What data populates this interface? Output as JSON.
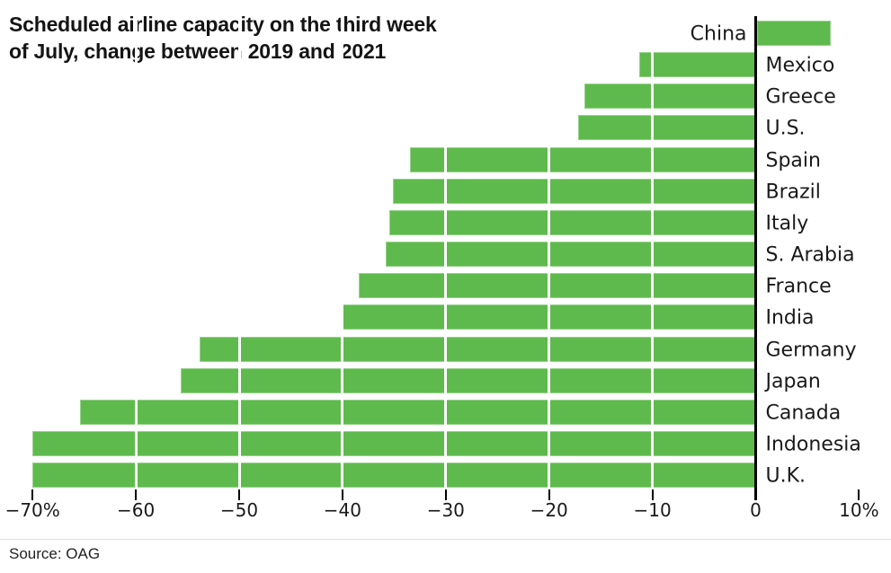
{
  "header": {
    "title_lines": [
      "Scheduled airline capacity on the third week",
      "of July, change between 2019 and 2021"
    ]
  },
  "source": {
    "label": "Source: OAG"
  },
  "colors": {
    "bar_green": "#5fba4d",
    "axis_black": "#000000",
    "text_dark": "#1a1a1a",
    "divider_gray": "#e0e0e0"
  },
  "chart_data": {
    "type": "bar",
    "orientation": "horizontal",
    "title": "Scheduled airline capacity on the third week of July, change between 2019 and 2021",
    "unit": "%",
    "categories": [
      "China",
      "Mexico",
      "Greece",
      "U.S.",
      "Spain",
      "Brazil",
      "Italy",
      "S. Arabia",
      "France",
      "India",
      "Germany",
      "Japan",
      "Canada",
      "Indonesia",
      "U.K."
    ],
    "values": [
      7.1,
      -11.3,
      -16.6,
      -17.2,
      -33.5,
      -35.1,
      -35.5,
      -35.8,
      -38.4,
      -40.1,
      -53.8,
      -55.7,
      -65.4,
      -70,
      -70
    ],
    "xlim": [
      -70,
      10
    ],
    "x_ticks": [
      -70,
      -60,
      -50,
      -40,
      -30,
      -20,
      -10,
      0,
      10
    ],
    "x_tick_labels": [
      "−70%",
      "−60",
      "−50",
      "−40",
      "−30",
      "−20",
      "−10",
      "0",
      "10%"
    ],
    "grid": "white vertical gridlines drawn over bars at each tick",
    "legend": "none",
    "label_placement": "country labels beside zero axis; positive bar labeled left of axis, negative bars labeled right of axis"
  }
}
